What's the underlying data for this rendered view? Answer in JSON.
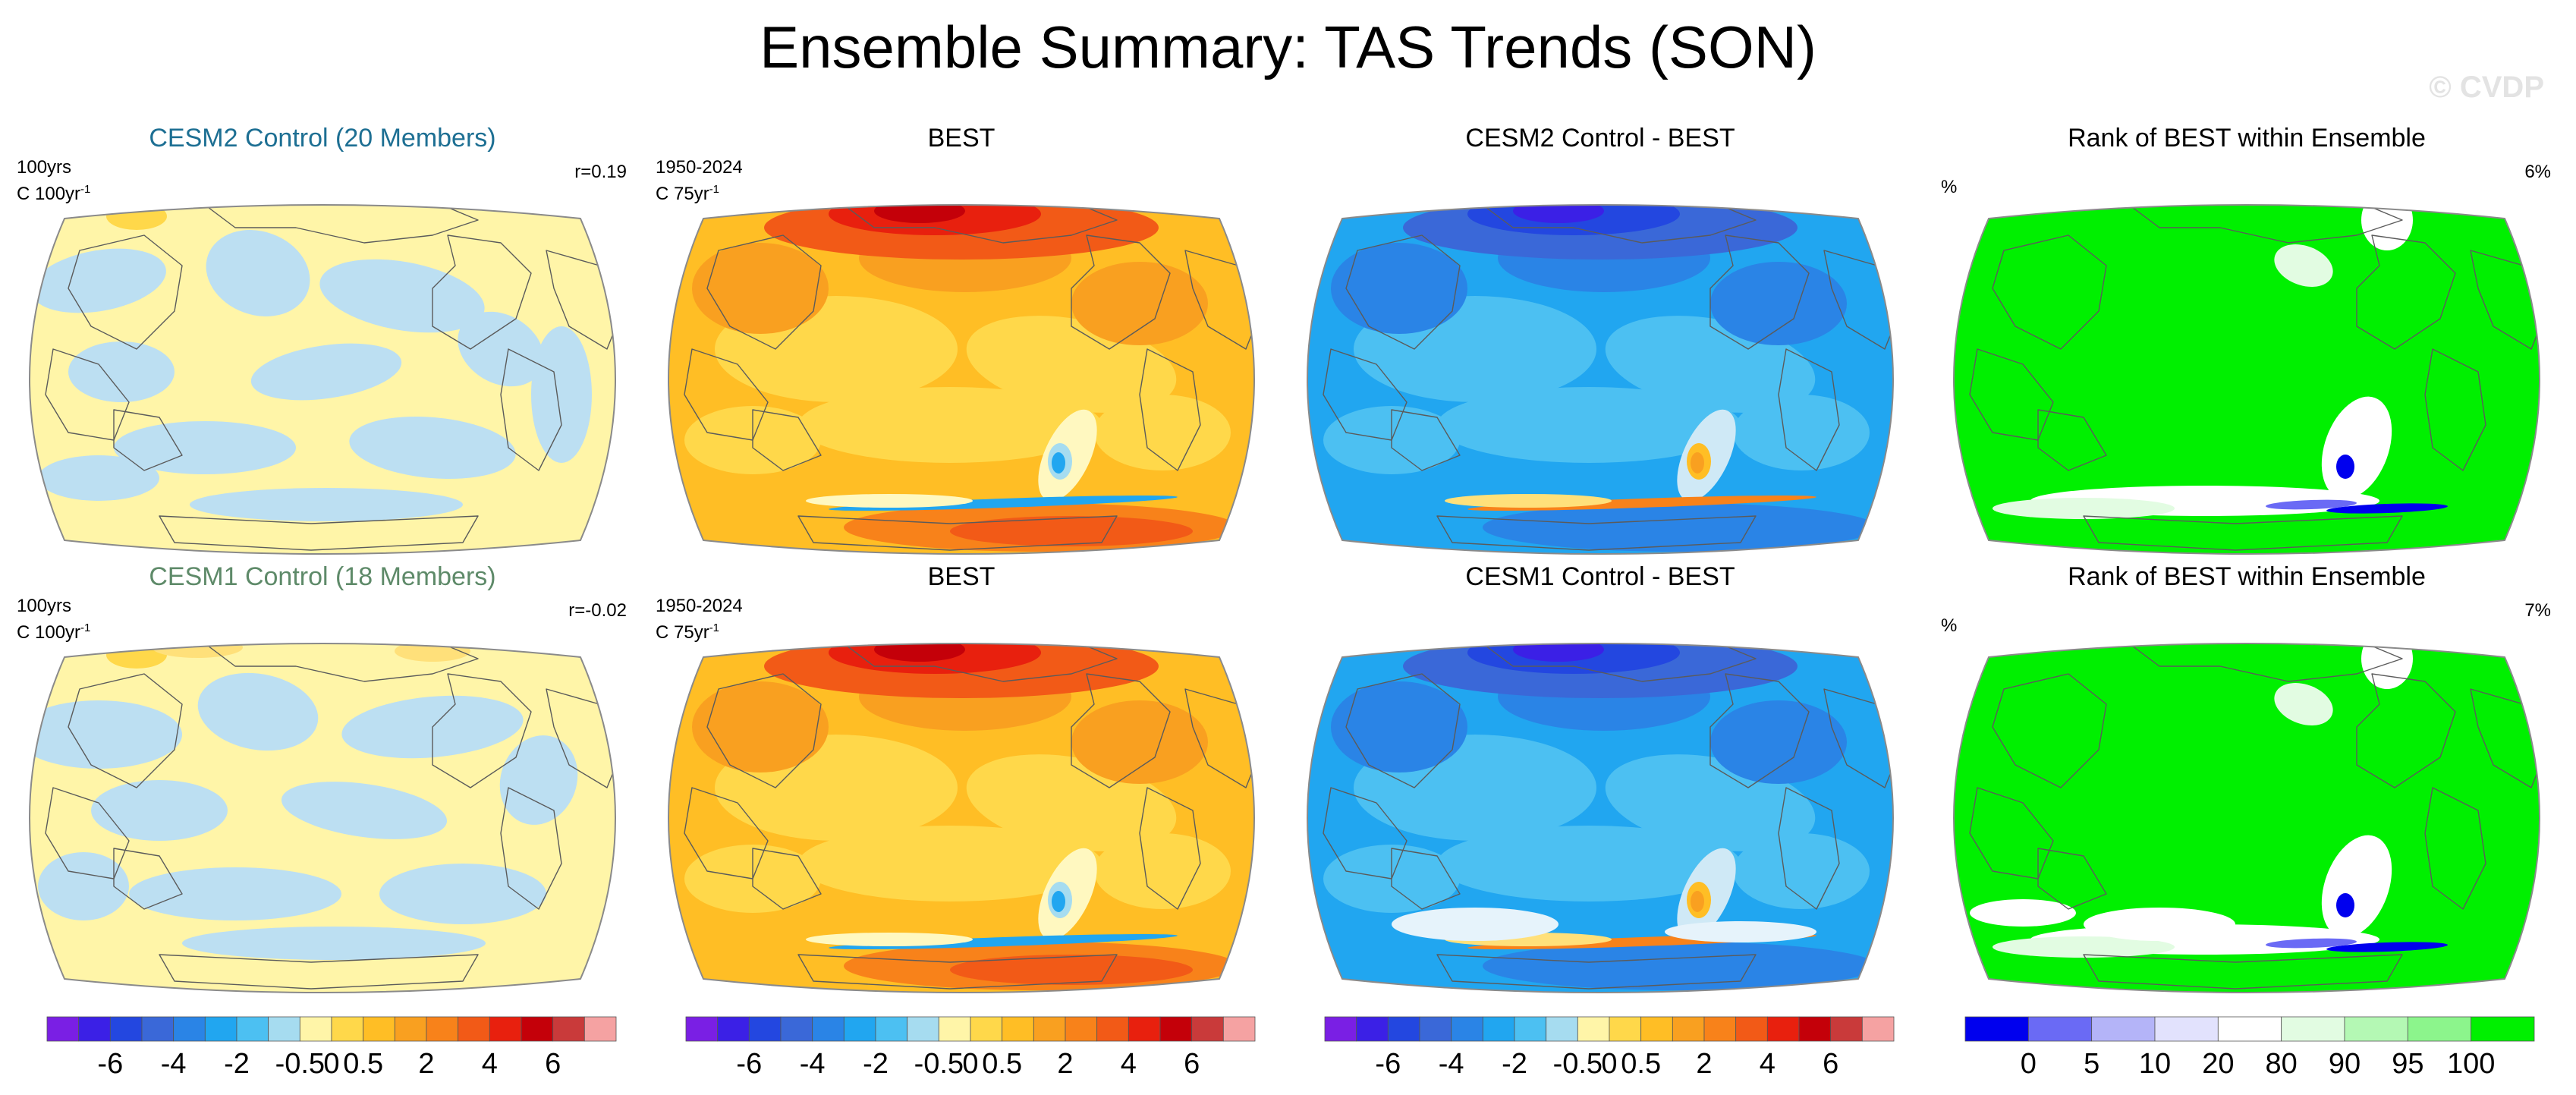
{
  "figure_title": "Ensemble Summary: TAS Trends (SON)",
  "watermark": "© CVDP",
  "chart_data": [
    {
      "type": "heatmap",
      "title": "CESM2 Control (20 Members)",
      "left_label_line1": "100yrs",
      "left_label_line2": "C 100yr",
      "left_label_sup": "-1",
      "right_label": "r=0.19",
      "palette": "trend",
      "field": "control",
      "projection": "Robinson (Pacific-centered)"
    },
    {
      "type": "heatmap",
      "title": "BEST",
      "left_label_line1": "1950-2024",
      "left_label_line2": "C 75yr",
      "left_label_sup": "-1",
      "right_label": "",
      "palette": "trend",
      "field": "obs",
      "projection": "Robinson (Pacific-centered)"
    },
    {
      "type": "heatmap",
      "title": "CESM2 Control - BEST",
      "left_label_line1": "",
      "left_label_line2": "",
      "left_label_sup": "",
      "right_label": "",
      "palette": "trend",
      "field": "diff",
      "projection": "Robinson (Pacific-centered)"
    },
    {
      "type": "heatmap",
      "title": "Rank of BEST within Ensemble",
      "left_label_line1": "",
      "left_label_line2": "%",
      "left_label_sup": "",
      "right_label": "6%",
      "palette": "rank",
      "field": "rank",
      "projection": "Robinson (Pacific-centered)"
    },
    {
      "type": "heatmap",
      "title": "CESM1 Control (18 Members)",
      "left_label_line1": "100yrs",
      "left_label_line2": "C 100yr",
      "left_label_sup": "-1",
      "right_label": "r=-0.02",
      "palette": "trend",
      "field": "control",
      "projection": "Robinson (Pacific-centered)"
    },
    {
      "type": "heatmap",
      "title": "BEST",
      "left_label_line1": "1950-2024",
      "left_label_line2": "C 75yr",
      "left_label_sup": "-1",
      "right_label": "",
      "palette": "trend",
      "field": "obs",
      "projection": "Robinson (Pacific-centered)"
    },
    {
      "type": "heatmap",
      "title": "CESM1 Control - BEST",
      "left_label_line1": "",
      "left_label_line2": "",
      "left_label_sup": "",
      "right_label": "",
      "palette": "trend",
      "field": "diff",
      "projection": "Robinson (Pacific-centered)"
    },
    {
      "type": "heatmap",
      "title": "Rank of BEST within Ensemble",
      "left_label_line1": "",
      "left_label_line2": "%",
      "left_label_sup": "",
      "right_label": "7%",
      "palette": "rank",
      "field": "rank",
      "projection": "Robinson (Pacific-centered)"
    }
  ],
  "colorbars": {
    "trend": {
      "colors": [
        "#7a1fe4",
        "#3b20e6",
        "#2347e0",
        "#3a68d8",
        "#2a84e6",
        "#21a6f0",
        "#4cc0f2",
        "#a6dcf0",
        "#fff5a8",
        "#ffd84a",
        "#ffbe25",
        "#f9a020",
        "#f8821a",
        "#f25a17",
        "#e8200e",
        "#c40009",
        "#c93a3a",
        "#f5a2a2"
      ],
      "labels": [
        "-6",
        "-4",
        "-2",
        "-0.5",
        "0",
        "0.5",
        "2",
        "4",
        "6"
      ],
      "label_after_box": [
        1,
        3,
        5,
        7,
        8,
        9,
        11,
        13,
        15
      ]
    },
    "rank": {
      "colors": [
        "#0000ee",
        "#6a6af5",
        "#b4b4f8",
        "#e2e2fd",
        "#ffffff",
        "#e2fce2",
        "#b4f8b4",
        "#8cf58c",
        "#00f000"
      ],
      "labels": [
        "0",
        "5",
        "10",
        "20",
        "80",
        "90",
        "95",
        "100"
      ],
      "label_after_box": [
        0,
        1,
        2,
        3,
        4,
        5,
        6,
        7
      ]
    }
  }
}
